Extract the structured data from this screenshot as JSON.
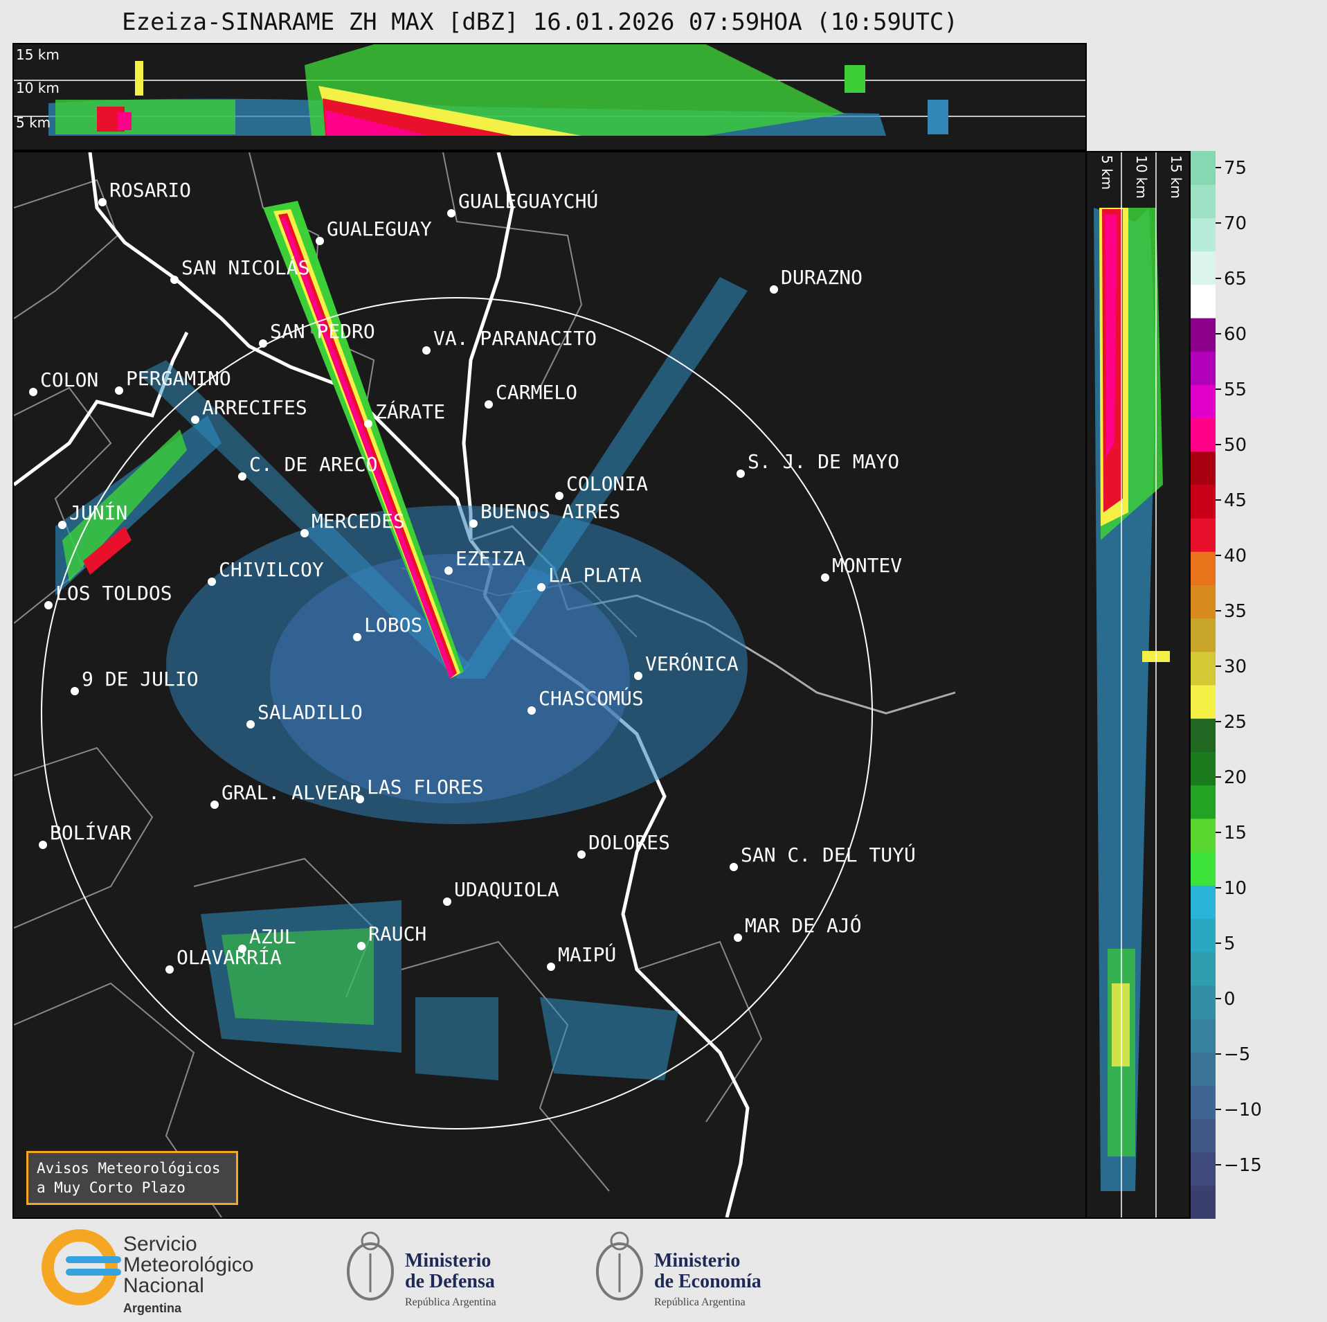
{
  "header": {
    "title": "Ezeiza-SINARAME ZH MAX [dBZ] 16.01.2026 07:59HOA (10:59UTC)"
  },
  "top_panel": {
    "altitudes": [
      "15 km",
      "10 km",
      "5 km"
    ]
  },
  "side_panel": {
    "altitudes": [
      "5 km",
      "10 km",
      "15 km"
    ]
  },
  "colorbar": {
    "ticks": [
      "75",
      "70",
      "65",
      "60",
      "55",
      "50",
      "45",
      "40",
      "35",
      "30",
      "25",
      "20",
      "15",
      "10",
      "5",
      "0",
      "−5",
      "−10",
      "−15"
    ],
    "colors": [
      "#3b3f6e",
      "#3f4a7c",
      "#3f5888",
      "#3f6693",
      "#3b7499",
      "#37829e",
      "#338fa5",
      "#2f9cb0",
      "#2aa8c2",
      "#2bb3d8",
      "#3ce33a",
      "#5ad631",
      "#24a324",
      "#1b7a1b",
      "#216621",
      "#f5f045",
      "#d4c835",
      "#c8a62a",
      "#d98a1c",
      "#e8731a",
      "#e8102a",
      "#c90018",
      "#a8000f",
      "#ff0088",
      "#e000c8",
      "#b000b8",
      "#8a008a",
      "#ffffff",
      "#dcf5ea",
      "#b7ecd8",
      "#9ee2c5",
      "#86d8b2"
    ]
  },
  "cities": [
    "ROSARIO",
    "GUALEGUAYCHÚ",
    "GUALEGUAY",
    "SAN NICOLÁS",
    "DURAZNO",
    "SAN PEDRO",
    "VA. PARANACITO",
    "COLON",
    "PERGAMINO",
    "CARMELO",
    "ARRECIFES",
    "ZÁRATE",
    "S. J. DE MAYO",
    "C. DE ARECO",
    "COLONIA",
    "BUENOS AIRES",
    "JUNÍN",
    "MERCEDES",
    "EZEIZA",
    "MONTEV",
    "CHIVILCOY",
    "LA PLATA",
    "LOS TOLDOS",
    "LOBOS",
    "VERÓNICA",
    "9 DE JULIO",
    "CHASCOMÚS",
    "SALADILLO",
    "GRAL. ALVEAR",
    "LAS FLORES",
    "BOLÍVAR",
    "DOLORES",
    "SAN C. DEL TUYÚ",
    "UDAQUIOLA",
    "AZUL",
    "RAUCH",
    "MAR DE AJÓ",
    "OLAVARRÍA",
    "MAIPÚ"
  ],
  "avisos": {
    "line1": "Avisos Meteorológicos",
    "line2": "a Muy Corto Plazo"
  },
  "logos": {
    "smn": {
      "line1": "Servicio",
      "line2": "Meteorológico",
      "line3": "Nacional",
      "sub": "Argentina"
    },
    "defensa": {
      "line1": "Ministerio",
      "line2": "de Defensa",
      "sub": "República Argentina"
    },
    "economia": {
      "line1": "Ministerio",
      "line2": "de Economía",
      "sub": "República Argentina"
    }
  }
}
